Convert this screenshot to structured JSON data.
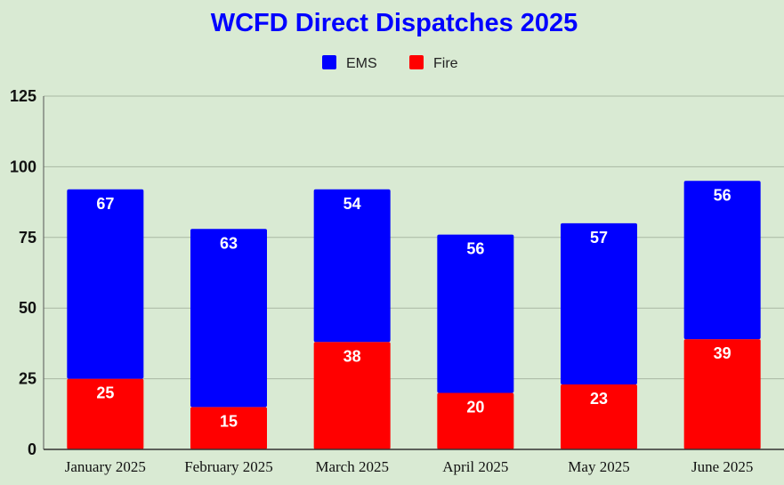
{
  "chart_data": {
    "type": "bar",
    "stacked": true,
    "title": "WCFD Direct Dispatches 2025",
    "categories": [
      "January 2025",
      "February 2025",
      "March 2025",
      "April 2025",
      "May 2025",
      "June 2025"
    ],
    "series": [
      {
        "name": "Fire",
        "color": "#ff0000",
        "values": [
          25,
          15,
          38,
          20,
          23,
          39
        ]
      },
      {
        "name": "EMS",
        "color": "#0000ff",
        "values": [
          67,
          63,
          54,
          56,
          57,
          56
        ]
      }
    ],
    "legend": {
      "order": [
        "EMS",
        "Fire"
      ],
      "position": "top"
    },
    "ylim": [
      0,
      125
    ],
    "yticks": [
      0,
      25,
      50,
      75,
      100,
      125
    ],
    "grid": true,
    "colors": {
      "background": "#d9ead3",
      "title": "#0000ff",
      "grid": "#a9b8a3"
    }
  }
}
